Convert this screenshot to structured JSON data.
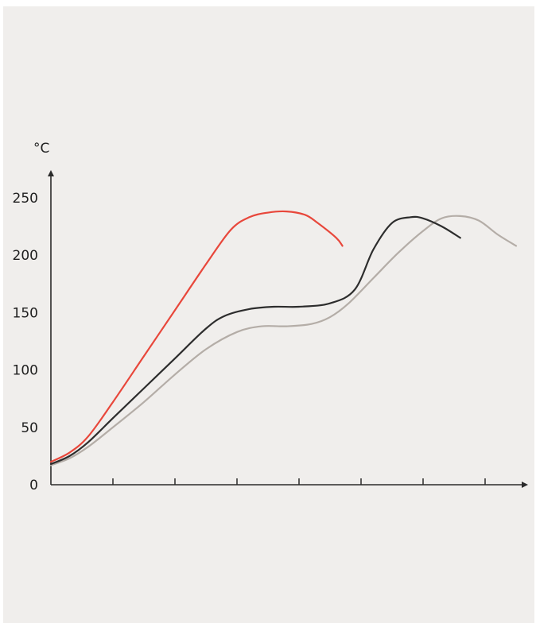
{
  "colors": {
    "background": "#f0eeec",
    "axis": "#2a2a2a",
    "series_red": "#e8473b",
    "series_black": "#2d2d2d",
    "series_grey": "#b4ada7"
  },
  "chart_data": {
    "type": "line",
    "title": "",
    "xlabel": "",
    "ylabel": "°C",
    "ylim": [
      0,
      260
    ],
    "xlim": [
      0,
      7.6
    ],
    "y_ticks": [
      0,
      50,
      100,
      150,
      200,
      250
    ],
    "y_tick_labels": [
      "0",
      "50",
      "100",
      "150",
      "200",
      "250"
    ],
    "x_ticks": [
      1,
      2,
      3,
      4,
      5,
      6,
      7
    ],
    "x_tick_labels": [],
    "grid": false,
    "legend": "none",
    "series": [
      {
        "color": "#e8473b",
        "x": [
          0.0,
          0.3,
          0.6,
          1.0,
          1.5,
          2.0,
          2.5,
          2.9,
          3.2,
          3.5,
          3.8,
          4.1,
          4.3,
          4.6,
          4.7
        ],
        "y": [
          20,
          28,
          42,
          72,
          112,
          152,
          192,
          222,
          233,
          237,
          238,
          235,
          228,
          215,
          208
        ]
      },
      {
        "color": "#2d2d2d",
        "x": [
          0.0,
          0.3,
          0.6,
          1.0,
          1.5,
          2.0,
          2.5,
          2.8,
          3.2,
          3.6,
          4.0,
          4.5,
          4.9,
          5.2,
          5.5,
          5.8,
          6.0,
          6.3,
          6.6
        ],
        "y": [
          18,
          25,
          37,
          58,
          84,
          110,
          136,
          147,
          153,
          155,
          155,
          158,
          170,
          205,
          228,
          233,
          232,
          225,
          215
        ]
      },
      {
        "color": "#b4ada7",
        "x": [
          0.0,
          0.3,
          0.6,
          1.0,
          1.5,
          2.0,
          2.5,
          3.0,
          3.4,
          3.8,
          4.2,
          4.5,
          4.8,
          5.2,
          5.6,
          6.0,
          6.3,
          6.6,
          6.9,
          7.2,
          7.5
        ],
        "y": [
          17,
          23,
          33,
          50,
          72,
          96,
          118,
          133,
          138,
          138,
          140,
          146,
          158,
          180,
          202,
          221,
          232,
          234,
          230,
          218,
          208
        ]
      }
    ]
  }
}
